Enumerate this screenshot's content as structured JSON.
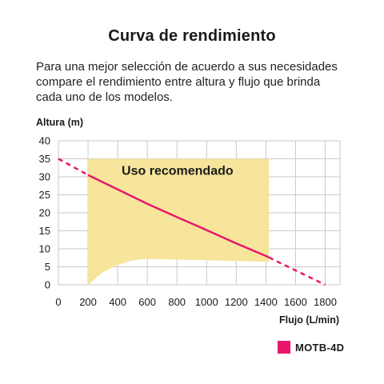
{
  "title": "Curva de rendimiento",
  "description": [
    "Para una mejor selección de acuerdo a sus necesidades",
    "compare el rendimiento entre altura y flujo que brinda",
    "cada uno de los modelos."
  ],
  "chart_data": {
    "type": "line",
    "ylabel": "Altura (m)",
    "xlabel": "Flujo (L/min)",
    "xlim": [
      0,
      1900
    ],
    "ylim": [
      0,
      40
    ],
    "x_ticks": [
      0,
      200,
      400,
      600,
      800,
      1000,
      1200,
      1400,
      1600,
      1800
    ],
    "y_ticks": [
      0,
      5,
      10,
      15,
      20,
      25,
      30,
      35,
      40
    ],
    "grid": true,
    "recommended_zone": {
      "label": "Uso recomendado",
      "color": "#f6e59a",
      "x_range": [
        200,
        1420
      ],
      "top": 35,
      "lower_boundary": [
        [
          200,
          0
        ],
        [
          300,
          3.5
        ],
        [
          400,
          5.5
        ],
        [
          500,
          6.8
        ],
        [
          600,
          7.2
        ],
        [
          1420,
          6.4
        ]
      ]
    },
    "series": [
      {
        "name": "MOTB-4D",
        "color": "#e8176d",
        "x": [
          0,
          200,
          400,
          600,
          800,
          1000,
          1200,
          1400,
          1600,
          1800
        ],
        "y": [
          35,
          30.5,
          26.5,
          22.5,
          18.8,
          15.2,
          11.5,
          8,
          4,
          0
        ],
        "solid_range": [
          200,
          1420
        ]
      }
    ]
  },
  "legend": [
    {
      "label": "MOTB-4D",
      "color": "#e8176d"
    }
  ]
}
